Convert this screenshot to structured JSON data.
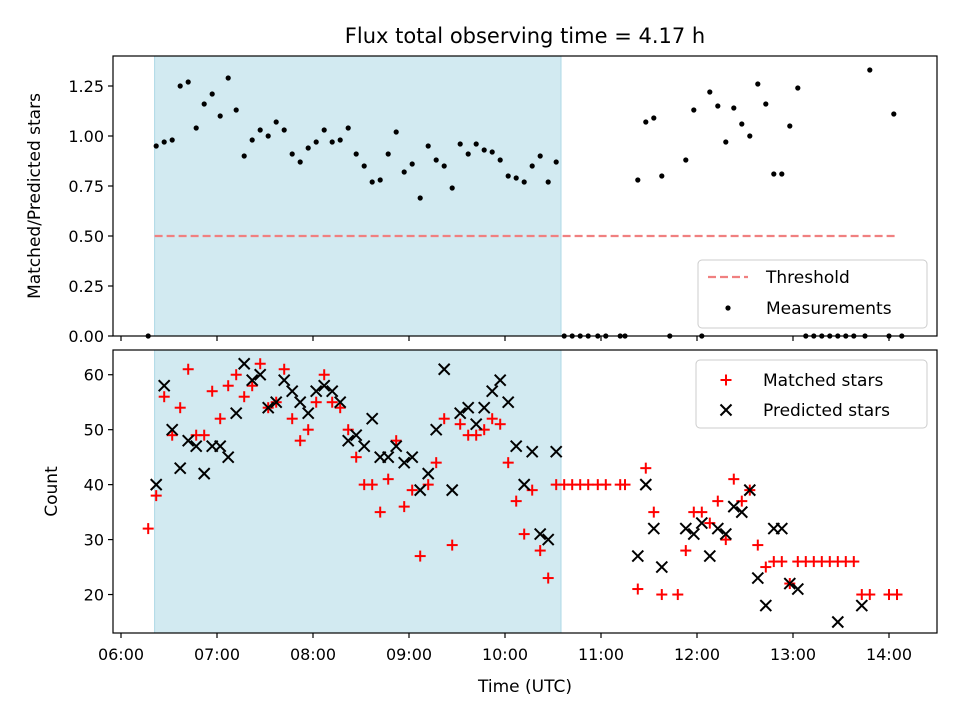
{
  "title": "Flux total observing time = 4.17 h",
  "chart_data": [
    {
      "type": "scatter",
      "ylabel": "Matched/Predicted stars",
      "ylim": [
        0,
        1.4
      ],
      "xlim": [
        "05:55",
        "14:30"
      ],
      "yticks": [
        "0.00",
        "0.25",
        "0.50",
        "0.75",
        "1.00",
        "1.25"
      ],
      "highlight_span": [
        "06:21",
        "10:35"
      ],
      "threshold": {
        "value": 0.5,
        "x_start": "06:21",
        "x_end": "14:05"
      },
      "legend": {
        "position": "lower-right",
        "entries": [
          "Threshold",
          "Measurements"
        ]
      },
      "colors": {
        "threshold": "#f08080",
        "measurements": "#000000",
        "span": "#add8e6"
      },
      "measurements": [
        [
          "06:17",
          0
        ],
        [
          "06:22",
          0.95
        ],
        [
          "06:27",
          0.97
        ],
        [
          "06:32",
          0.98
        ],
        [
          "06:37",
          1.25
        ],
        [
          "06:42",
          1.27
        ],
        [
          "06:47",
          1.04
        ],
        [
          "06:52",
          1.16
        ],
        [
          "06:57",
          1.21
        ],
        [
          "07:02",
          1.1
        ],
        [
          "07:07",
          1.29
        ],
        [
          "07:12",
          1.13
        ],
        [
          "07:17",
          0.9
        ],
        [
          "07:22",
          0.98
        ],
        [
          "07:27",
          1.03
        ],
        [
          "07:32",
          1.0
        ],
        [
          "07:37",
          1.07
        ],
        [
          "07:42",
          1.03
        ],
        [
          "07:47",
          0.91
        ],
        [
          "07:52",
          0.87
        ],
        [
          "07:57",
          0.94
        ],
        [
          "08:02",
          0.97
        ],
        [
          "08:07",
          1.03
        ],
        [
          "08:12",
          0.97
        ],
        [
          "08:17",
          0.98
        ],
        [
          "08:22",
          1.04
        ],
        [
          "08:27",
          0.91
        ],
        [
          "08:32",
          0.85
        ],
        [
          "08:37",
          0.77
        ],
        [
          "08:42",
          0.78
        ],
        [
          "08:47",
          0.91
        ],
        [
          "08:52",
          1.02
        ],
        [
          "08:57",
          0.82
        ],
        [
          "09:02",
          0.86
        ],
        [
          "09:07",
          0.69
        ],
        [
          "09:12",
          0.95
        ],
        [
          "09:17",
          0.88
        ],
        [
          "09:22",
          0.85
        ],
        [
          "09:27",
          0.74
        ],
        [
          "09:32",
          0.96
        ],
        [
          "09:37",
          0.91
        ],
        [
          "09:42",
          0.96
        ],
        [
          "09:47",
          0.93
        ],
        [
          "09:52",
          0.92
        ],
        [
          "09:57",
          0.88
        ],
        [
          "10:02",
          0.8
        ],
        [
          "10:07",
          0.79
        ],
        [
          "10:12",
          0.77
        ],
        [
          "10:17",
          0.85
        ],
        [
          "10:22",
          0.9
        ],
        [
          "10:27",
          0.77
        ],
        [
          "10:32",
          0.87
        ],
        [
          "10:37",
          0
        ],
        [
          "10:42",
          0
        ],
        [
          "10:47",
          0
        ],
        [
          "10:52",
          0
        ],
        [
          "10:58",
          0
        ],
        [
          "11:03",
          0
        ],
        [
          "11:12",
          0
        ],
        [
          "11:15",
          0
        ],
        [
          "11:23",
          0.78
        ],
        [
          "11:28",
          1.07
        ],
        [
          "11:33",
          1.09
        ],
        [
          "11:38",
          0.8
        ],
        [
          "11:43",
          0
        ],
        [
          "11:53",
          0.88
        ],
        [
          "11:58",
          1.13
        ],
        [
          "12:03",
          0
        ],
        [
          "12:08",
          1.22
        ],
        [
          "12:13",
          1.15
        ],
        [
          "12:18",
          0.97
        ],
        [
          "12:23",
          1.14
        ],
        [
          "12:28",
          1.06
        ],
        [
          "12:33",
          1.0
        ],
        [
          "12:38",
          1.26
        ],
        [
          "12:43",
          1.16
        ],
        [
          "12:48",
          0.81
        ],
        [
          "12:53",
          0.81
        ],
        [
          "12:58",
          1.05
        ],
        [
          "13:03",
          1.24
        ],
        [
          "13:08",
          0
        ],
        [
          "13:13",
          0
        ],
        [
          "13:18",
          0
        ],
        [
          "13:23",
          0
        ],
        [
          "13:28",
          0
        ],
        [
          "13:33",
          0
        ],
        [
          "13:38",
          0
        ],
        [
          "13:45",
          0
        ],
        [
          "13:48",
          1.33
        ],
        [
          "14:00",
          0
        ],
        [
          "14:03",
          1.11
        ],
        [
          "14:08",
          0
        ]
      ]
    },
    {
      "type": "scatter",
      "xlabel": "Time (UTC)",
      "ylabel": "Count",
      "ylim": [
        13,
        64.5
      ],
      "xlim": [
        "05:55",
        "14:30"
      ],
      "yticks": [
        "20",
        "30",
        "40",
        "50",
        "60"
      ],
      "xticks": [
        "06:00",
        "07:00",
        "08:00",
        "09:00",
        "10:00",
        "11:00",
        "12:00",
        "13:00",
        "14:00"
      ],
      "highlight_span": [
        "06:21",
        "10:35"
      ],
      "legend": {
        "position": "upper-right",
        "entries": [
          "Matched stars",
          "Predicted stars"
        ]
      },
      "colors": {
        "matched": "#ff0000",
        "predicted": "#000000",
        "span": "#add8e6"
      },
      "series": [
        {
          "name": "Matched stars",
          "marker": "+",
          "points": [
            [
              "06:17",
              32
            ],
            [
              "06:22",
              38
            ],
            [
              "06:27",
              56
            ],
            [
              "06:32",
              49
            ],
            [
              "06:37",
              54
            ],
            [
              "06:42",
              61
            ],
            [
              "06:47",
              49
            ],
            [
              "06:52",
              49
            ],
            [
              "06:57",
              57
            ],
            [
              "07:02",
              52
            ],
            [
              "07:07",
              58
            ],
            [
              "07:12",
              60
            ],
            [
              "07:17",
              56
            ],
            [
              "07:22",
              58
            ],
            [
              "07:27",
              62
            ],
            [
              "07:32",
              54
            ],
            [
              "07:37",
              55
            ],
            [
              "07:42",
              61
            ],
            [
              "07:47",
              52
            ],
            [
              "07:52",
              48
            ],
            [
              "07:57",
              50
            ],
            [
              "08:02",
              55
            ],
            [
              "08:07",
              60
            ],
            [
              "08:12",
              55
            ],
            [
              "08:17",
              54
            ],
            [
              "08:22",
              50
            ],
            [
              "08:27",
              45
            ],
            [
              "08:32",
              40
            ],
            [
              "08:37",
              40
            ],
            [
              "08:42",
              35
            ],
            [
              "08:47",
              41
            ],
            [
              "08:52",
              48
            ],
            [
              "08:57",
              36
            ],
            [
              "09:02",
              39
            ],
            [
              "09:07",
              27
            ],
            [
              "09:12",
              40
            ],
            [
              "09:17",
              44
            ],
            [
              "09:22",
              52
            ],
            [
              "09:27",
              29
            ],
            [
              "09:32",
              51
            ],
            [
              "09:37",
              49
            ],
            [
              "09:42",
              49
            ],
            [
              "09:47",
              50
            ],
            [
              "09:52",
              52
            ],
            [
              "09:57",
              51
            ],
            [
              "10:02",
              44
            ],
            [
              "10:07",
              37
            ],
            [
              "10:12",
              31
            ],
            [
              "10:17",
              39
            ],
            [
              "10:22",
              28
            ],
            [
              "10:27",
              23
            ],
            [
              "10:32",
              40
            ],
            [
              "10:37",
              40
            ],
            [
              "10:42",
              40
            ],
            [
              "10:47",
              40
            ],
            [
              "10:52",
              40
            ],
            [
              "10:58",
              40
            ],
            [
              "11:03",
              40
            ],
            [
              "11:12",
              40
            ],
            [
              "11:15",
              40
            ],
            [
              "11:23",
              21
            ],
            [
              "11:28",
              43
            ],
            [
              "11:33",
              35
            ],
            [
              "11:38",
              20
            ],
            [
              "11:48",
              20
            ],
            [
              "11:53",
              28
            ],
            [
              "11:58",
              35
            ],
            [
              "12:03",
              35
            ],
            [
              "12:08",
              33
            ],
            [
              "12:13",
              37
            ],
            [
              "12:18",
              30
            ],
            [
              "12:23",
              41
            ],
            [
              "12:28",
              37
            ],
            [
              "12:33",
              39
            ],
            [
              "12:38",
              29
            ],
            [
              "12:43",
              25
            ],
            [
              "12:48",
              26
            ],
            [
              "12:53",
              26
            ],
            [
              "12:58",
              22
            ],
            [
              "13:03",
              26
            ],
            [
              "13:08",
              26
            ],
            [
              "13:13",
              26
            ],
            [
              "13:18",
              26
            ],
            [
              "13:23",
              26
            ],
            [
              "13:28",
              26
            ],
            [
              "13:33",
              26
            ],
            [
              "13:38",
              26
            ],
            [
              "13:43",
              20
            ],
            [
              "13:48",
              20
            ],
            [
              "14:00",
              20
            ],
            [
              "14:05",
              20
            ]
          ]
        },
        {
          "name": "Predicted stars",
          "marker": "x",
          "points": [
            [
              "06:22",
              40
            ],
            [
              "06:27",
              58
            ],
            [
              "06:32",
              50
            ],
            [
              "06:37",
              43
            ],
            [
              "06:42",
              48
            ],
            [
              "06:47",
              47
            ],
            [
              "06:52",
              42
            ],
            [
              "06:57",
              47
            ],
            [
              "07:02",
              47
            ],
            [
              "07:07",
              45
            ],
            [
              "07:12",
              53
            ],
            [
              "07:17",
              62
            ],
            [
              "07:22",
              59
            ],
            [
              "07:27",
              60
            ],
            [
              "07:32",
              54
            ],
            [
              "07:37",
              55
            ],
            [
              "07:42",
              59
            ],
            [
              "07:47",
              57
            ],
            [
              "07:52",
              55
            ],
            [
              "07:57",
              53
            ],
            [
              "08:02",
              57
            ],
            [
              "08:07",
              58
            ],
            [
              "08:12",
              57
            ],
            [
              "08:17",
              55
            ],
            [
              "08:22",
              48
            ],
            [
              "08:27",
              49
            ],
            [
              "08:32",
              47
            ],
            [
              "08:37",
              52
            ],
            [
              "08:42",
              45
            ],
            [
              "08:47",
              45
            ],
            [
              "08:52",
              47
            ],
            [
              "08:57",
              44
            ],
            [
              "09:02",
              45
            ],
            [
              "09:07",
              39
            ],
            [
              "09:12",
              42
            ],
            [
              "09:17",
              50
            ],
            [
              "09:22",
              61
            ],
            [
              "09:27",
              39
            ],
            [
              "09:32",
              53
            ],
            [
              "09:37",
              54
            ],
            [
              "09:42",
              51
            ],
            [
              "09:47",
              54
            ],
            [
              "09:52",
              57
            ],
            [
              "09:57",
              59
            ],
            [
              "10:02",
              55
            ],
            [
              "10:07",
              47
            ],
            [
              "10:12",
              40
            ],
            [
              "10:17",
              46
            ],
            [
              "10:22",
              31
            ],
            [
              "10:27",
              30
            ],
            [
              "10:32",
              46
            ],
            [
              "11:23",
              27
            ],
            [
              "11:28",
              40
            ],
            [
              "11:33",
              32
            ],
            [
              "11:38",
              25
            ],
            [
              "11:53",
              32
            ],
            [
              "11:58",
              31
            ],
            [
              "12:03",
              33
            ],
            [
              "12:08",
              27
            ],
            [
              "12:13",
              32
            ],
            [
              "12:18",
              31
            ],
            [
              "12:23",
              36
            ],
            [
              "12:28",
              35
            ],
            [
              "12:33",
              39
            ],
            [
              "12:38",
              23
            ],
            [
              "12:43",
              18
            ],
            [
              "12:48",
              32
            ],
            [
              "12:53",
              32
            ],
            [
              "12:58",
              22
            ],
            [
              "13:03",
              21
            ],
            [
              "13:28",
              15
            ],
            [
              "13:43",
              18
            ]
          ]
        }
      ]
    }
  ]
}
